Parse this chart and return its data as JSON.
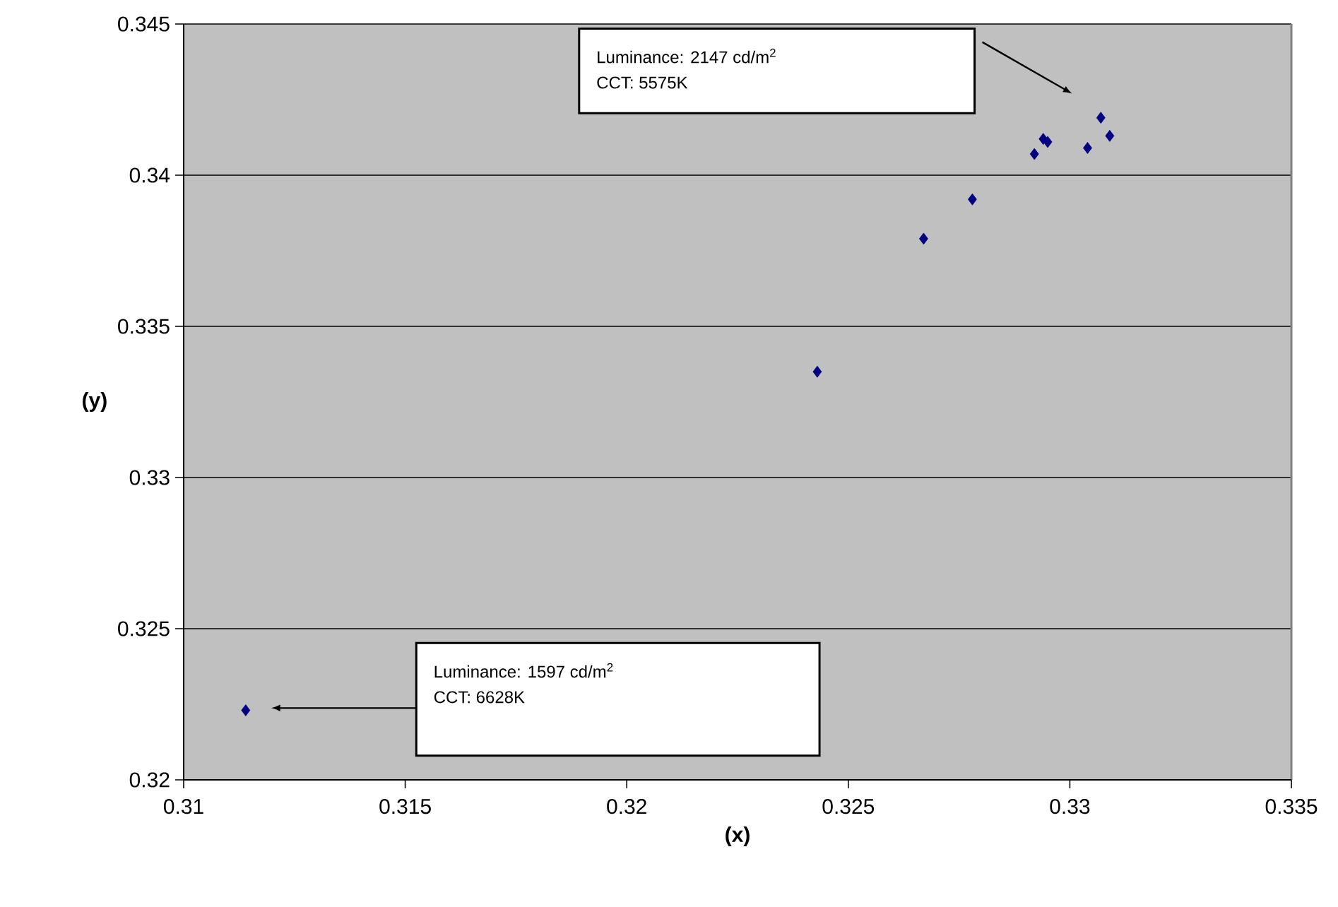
{
  "chart_data": {
    "type": "scatter",
    "xlabel": "(x)",
    "ylabel": "(y)",
    "x": [
      0.3114,
      0.3243,
      0.3267,
      0.3278,
      0.3292,
      0.3294,
      0.3295,
      0.3304,
      0.3307,
      0.3309
    ],
    "values": [
      0.3223,
      0.3335,
      0.3379,
      0.3392,
      0.3407,
      0.3412,
      0.3411,
      0.3409,
      0.3419,
      0.3413
    ],
    "color": "#000080",
    "marker": "diamond",
    "grid": "y",
    "xlim": [
      0.31,
      0.335
    ],
    "xticks": [
      0.31,
      0.315,
      0.32,
      0.325,
      0.33,
      0.335
    ],
    "ylim": [
      0.32,
      0.345
    ],
    "yticks": [
      0.32,
      0.325,
      0.33,
      0.335,
      0.34,
      0.345
    ],
    "annotations": [
      "Luminance: 2147 cd/m$^{2}$",
      "CCT: 5575K",
      "Luminance: 1597 cd/m$^{2}$",
      "CCT: 6628K"
    ]
  }
}
